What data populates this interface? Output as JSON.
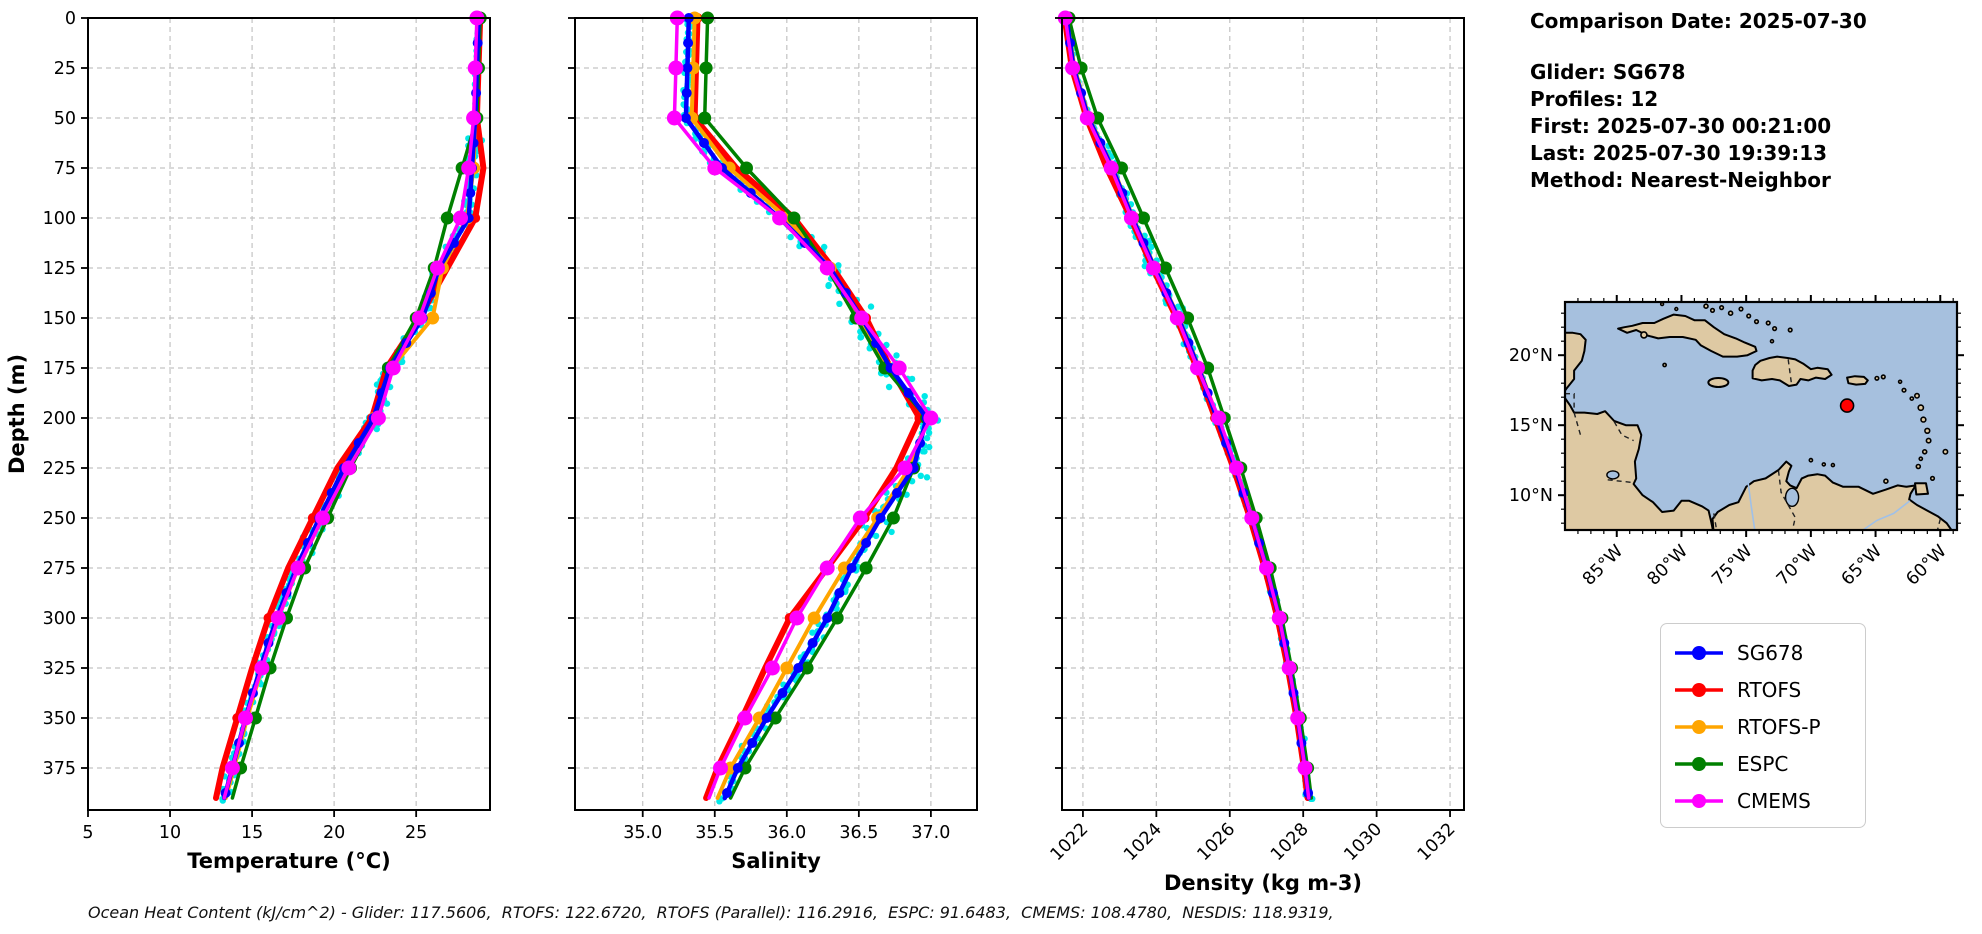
{
  "info_panel": {
    "comparison_date": "Comparison Date: 2025-07-30",
    "glider": "Glider: SG678",
    "profiles": "Profiles: 12",
    "first": "First: 2025-07-30 00:21:00",
    "last": "Last: 2025-07-30 19:39:13",
    "method": "Method: Nearest-Neighbor"
  },
  "footer": {
    "ohc_text": "Ocean Heat Content (kJ/cm^2) - Glider: 117.5606,  RTOFS: 122.6720,  RTOFS (Parallel): 116.2916,  ESPC: 91.6483,  CMEMS: 108.4780,  NESDIS: 118.9319,"
  },
  "colors": {
    "sg678": "#0000FF",
    "rtofs": "#FF0000",
    "rtofs_p": "#FFA500",
    "espc": "#008000",
    "cmems": "#FF00FF",
    "glider_scatter": "#00E8E8",
    "map_ocean": "#A6C0DE",
    "map_land": "#DEC9A3",
    "marker_red": "#FF0000",
    "grid": "#c3c3c3"
  },
  "legend": {
    "items": [
      {
        "label": "SG678",
        "color": "#0000FF"
      },
      {
        "label": "RTOFS",
        "color": "#FF0000"
      },
      {
        "label": "RTOFS-P",
        "color": "#FFA500"
      },
      {
        "label": "ESPC",
        "color": "#008000"
      },
      {
        "label": "CMEMS",
        "color": "#FF00FF"
      }
    ]
  },
  "map": {
    "lat_labels": [
      {
        "label": "20°N",
        "value": 20
      },
      {
        "label": "15°N",
        "value": 15
      },
      {
        "label": "10°N",
        "value": 10
      }
    ],
    "lon_labels": [
      {
        "label": "85°W",
        "value": 85
      },
      {
        "label": "80°W",
        "value": 80
      },
      {
        "label": "75°W",
        "value": 75
      },
      {
        "label": "70°W",
        "value": 70
      },
      {
        "label": "65°W",
        "value": 65
      },
      {
        "label": "60°W",
        "value": 60
      }
    ],
    "marker": {
      "lat": 16.4,
      "lon_w": 67.2
    }
  },
  "chart_data": [
    {
      "type": "line",
      "xlabel": "Temperature (°C)",
      "ylabel": "Depth (m)",
      "xlim": [
        5,
        29.5
      ],
      "ylim": [
        0,
        396
      ],
      "xticks": [
        5,
        10,
        15,
        20,
        25
      ],
      "xtick_labels": [
        "5",
        "10",
        "15",
        "20",
        "25"
      ],
      "xtick_rotation": 0,
      "show_ytick_labels": true,
      "yticks": [
        0,
        25,
        50,
        75,
        100,
        125,
        150,
        175,
        200,
        225,
        250,
        275,
        300,
        325,
        350,
        375
      ],
      "ytick_labels": [
        "0",
        "25",
        "50",
        "75",
        "100",
        "125",
        "150",
        "175",
        "200",
        "225",
        "250",
        "275",
        "300",
        "325",
        "350",
        "375"
      ],
      "depths": [
        0,
        25,
        50,
        75,
        100,
        125,
        150,
        175,
        200,
        225,
        250,
        275,
        300,
        325,
        350,
        375,
        390
      ],
      "series": [
        {
          "name": "SG678",
          "color": "#0000FF",
          "values": [
            28.8,
            28.7,
            28.6,
            28.4,
            28.2,
            26.4,
            25.4,
            23.4,
            22.4,
            20.6,
            19.1,
            17.7,
            16.5,
            15.5,
            14.6,
            13.8,
            13.3
          ]
        },
        {
          "name": "RTOFS",
          "color": "#FF0000",
          "values": [
            28.9,
            28.8,
            28.7,
            29.1,
            28.6,
            26.9,
            25.2,
            23.2,
            22.3,
            20.2,
            18.7,
            17.2,
            16.0,
            15.0,
            14.1,
            13.2,
            12.8
          ]
        },
        {
          "name": "RTOFS-P",
          "color": "#FFA500",
          "values": [
            28.8,
            28.7,
            28.6,
            28.5,
            28.1,
            26.6,
            26.0,
            23.5,
            22.5,
            20.8,
            19.3,
            17.8,
            16.6,
            15.6,
            14.7,
            13.9,
            13.4
          ]
        },
        {
          "name": "ESPC",
          "color": "#008000",
          "values": [
            28.9,
            28.8,
            28.7,
            27.8,
            26.9,
            26.1,
            25.0,
            23.3,
            22.6,
            21.0,
            19.6,
            18.2,
            17.1,
            16.1,
            15.2,
            14.3,
            13.8
          ]
        },
        {
          "name": "CMEMS",
          "color": "#FF00FF",
          "values": [
            28.7,
            28.6,
            28.5,
            28.2,
            27.7,
            26.3,
            25.2,
            23.6,
            22.7,
            20.9,
            19.3,
            17.8,
            16.6,
            15.6,
            14.6,
            13.8,
            13.3
          ]
        }
      ]
    },
    {
      "type": "line",
      "xlabel": "Salinity",
      "ylabel": "Depth (m)",
      "xlim": [
        34.53,
        37.32
      ],
      "ylim": [
        0,
        396
      ],
      "xticks": [
        35.0,
        35.5,
        36.0,
        36.5,
        37.0
      ],
      "xtick_labels": [
        "35.0",
        "35.5",
        "36.0",
        "36.5",
        "37.0"
      ],
      "xtick_rotation": 0,
      "show_ytick_labels": false,
      "yticks": [
        0,
        25,
        50,
        75,
        100,
        125,
        150,
        175,
        200,
        225,
        250,
        275,
        300,
        325,
        350,
        375
      ],
      "ytick_labels": [
        "0",
        "25",
        "50",
        "75",
        "100",
        "125",
        "150",
        "175",
        "200",
        "225",
        "250",
        "275",
        "300",
        "325",
        "350",
        "375"
      ],
      "depths": [
        0,
        25,
        50,
        75,
        100,
        125,
        150,
        175,
        200,
        225,
        250,
        275,
        300,
        325,
        350,
        375,
        390
      ],
      "series": [
        {
          "name": "SG678",
          "color": "#0000FF",
          "values": [
            35.32,
            35.31,
            35.3,
            35.55,
            35.95,
            36.3,
            36.52,
            36.72,
            36.97,
            36.88,
            36.65,
            36.45,
            36.28,
            36.08,
            35.86,
            35.66,
            35.57
          ]
        },
        {
          "name": "RTOFS",
          "color": "#FF0000",
          "values": [
            35.38,
            35.37,
            35.36,
            35.65,
            36.05,
            36.32,
            36.55,
            36.72,
            36.92,
            36.76,
            36.54,
            36.28,
            36.02,
            35.85,
            35.69,
            35.52,
            35.44
          ]
        },
        {
          "name": "RTOFS-P",
          "color": "#FFA500",
          "values": [
            35.36,
            35.35,
            35.34,
            35.6,
            36.0,
            36.3,
            36.5,
            36.7,
            36.98,
            36.85,
            36.63,
            36.4,
            36.19,
            36.0,
            35.81,
            35.61,
            35.52
          ]
        },
        {
          "name": "ESPC",
          "color": "#008000",
          "values": [
            35.45,
            35.44,
            35.43,
            35.72,
            36.05,
            36.28,
            36.48,
            36.68,
            36.97,
            36.88,
            36.74,
            36.55,
            36.35,
            36.14,
            35.92,
            35.71,
            35.61
          ]
        },
        {
          "name": "CMEMS",
          "color": "#FF00FF",
          "values": [
            35.24,
            35.23,
            35.22,
            35.5,
            35.95,
            36.28,
            36.52,
            36.78,
            37.0,
            36.82,
            36.51,
            36.28,
            36.07,
            35.9,
            35.71,
            35.54,
            35.46
          ]
        }
      ]
    },
    {
      "type": "line",
      "xlabel": "Density (kg m-3)",
      "ylabel": "Depth (m)",
      "xlim": [
        1021.43,
        1032.38
      ],
      "ylim": [
        0,
        396
      ],
      "xticks": [
        1022,
        1024,
        1026,
        1028,
        1030,
        1032
      ],
      "xtick_labels": [
        "1022",
        "1024",
        "1026",
        "1028",
        "1030",
        "1032"
      ],
      "xtick_rotation": 45,
      "show_ytick_labels": false,
      "yticks": [
        0,
        25,
        50,
        75,
        100,
        125,
        150,
        175,
        200,
        225,
        250,
        275,
        300,
        325,
        350,
        375
      ],
      "ytick_labels": [
        "0",
        "25",
        "50",
        "75",
        "100",
        "125",
        "150",
        "175",
        "200",
        "225",
        "250",
        "275",
        "300",
        "325",
        "350",
        "375"
      ],
      "depths": [
        0,
        25,
        50,
        75,
        100,
        125,
        150,
        175,
        200,
        225,
        250,
        275,
        300,
        325,
        350,
        375,
        390
      ],
      "series": [
        {
          "name": "SG678",
          "color": "#0000FF",
          "values": [
            1021.55,
            1021.75,
            1022.15,
            1022.8,
            1023.35,
            1023.95,
            1024.6,
            1025.15,
            1025.65,
            1026.15,
            1026.6,
            1027.0,
            1027.35,
            1027.62,
            1027.85,
            1028.05,
            1028.15
          ]
        },
        {
          "name": "RTOFS",
          "color": "#FF0000",
          "values": [
            1021.5,
            1021.7,
            1022.1,
            1022.65,
            1023.3,
            1023.9,
            1024.55,
            1025.1,
            1025.6,
            1026.1,
            1026.55,
            1026.95,
            1027.3,
            1027.58,
            1027.82,
            1028.02,
            1028.12
          ]
        },
        {
          "name": "RTOFS-P",
          "color": "#FFA500",
          "values": [
            1021.57,
            1021.77,
            1022.17,
            1022.82,
            1023.37,
            1023.97,
            1024.62,
            1025.17,
            1025.67,
            1026.17,
            1026.62,
            1027.02,
            1027.37,
            1027.64,
            1027.87,
            1028.07,
            1028.17
          ]
        },
        {
          "name": "ESPC",
          "color": "#008000",
          "values": [
            1021.62,
            1021.95,
            1022.4,
            1023.05,
            1023.65,
            1024.25,
            1024.85,
            1025.4,
            1025.85,
            1026.3,
            1026.72,
            1027.1,
            1027.42,
            1027.68,
            1027.92,
            1028.12,
            1028.22
          ]
        },
        {
          "name": "CMEMS",
          "color": "#FF00FF",
          "values": [
            1021.52,
            1021.72,
            1022.12,
            1022.77,
            1023.32,
            1023.92,
            1024.57,
            1025.12,
            1025.7,
            1026.18,
            1026.6,
            1027.0,
            1027.35,
            1027.62,
            1027.85,
            1028.05,
            1028.15
          ]
        }
      ]
    }
  ]
}
